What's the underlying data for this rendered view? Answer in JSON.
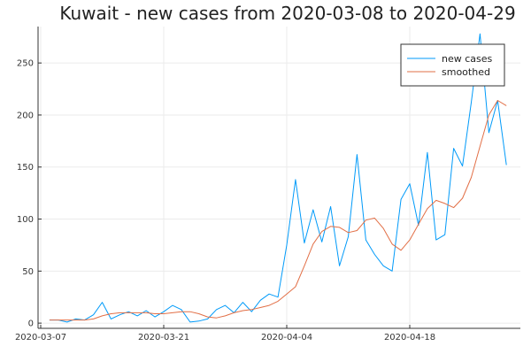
{
  "chart_data": {
    "type": "line",
    "title": "Kuwait - new cases from 2020-03-08 to 2020-04-29",
    "xlabel": "",
    "ylabel": "",
    "x_tick_labels": [
      "2020-03-07",
      "2020-03-21",
      "2020-04-04",
      "2020-04-18"
    ],
    "y_tick_labels": [
      "0",
      "50",
      "100",
      "150",
      "200",
      "250"
    ],
    "ylim": [
      -5,
      285
    ],
    "grid": true,
    "legend_position": "top-right",
    "x": [
      "2020-03-08",
      "2020-03-09",
      "2020-03-10",
      "2020-03-11",
      "2020-03-12",
      "2020-03-13",
      "2020-03-14",
      "2020-03-15",
      "2020-03-16",
      "2020-03-17",
      "2020-03-18",
      "2020-03-19",
      "2020-03-20",
      "2020-03-21",
      "2020-03-22",
      "2020-03-23",
      "2020-03-24",
      "2020-03-25",
      "2020-03-26",
      "2020-03-27",
      "2020-03-28",
      "2020-03-29",
      "2020-03-30",
      "2020-03-31",
      "2020-04-01",
      "2020-04-02",
      "2020-04-03",
      "2020-04-04",
      "2020-04-05",
      "2020-04-06",
      "2020-04-07",
      "2020-04-08",
      "2020-04-09",
      "2020-04-10",
      "2020-04-11",
      "2020-04-12",
      "2020-04-13",
      "2020-04-14",
      "2020-04-15",
      "2020-04-16",
      "2020-04-17",
      "2020-04-18",
      "2020-04-19",
      "2020-04-20",
      "2020-04-21",
      "2020-04-22",
      "2020-04-23",
      "2020-04-24",
      "2020-04-25",
      "2020-04-26",
      "2020-04-27",
      "2020-04-28",
      "2020-04-29"
    ],
    "series": [
      {
        "name": "new cases",
        "color": "#009af9",
        "values": [
          3,
          3,
          1,
          4,
          3,
          8,
          20,
          4,
          8,
          11,
          7,
          12,
          6,
          11,
          17,
          13,
          1,
          2,
          4,
          13,
          17,
          10,
          20,
          11,
          22,
          28,
          25,
          75,
          138,
          77,
          109,
          78,
          112,
          55,
          83,
          162,
          80,
          66,
          55,
          50,
          119,
          134,
          94,
          164,
          80,
          85,
          168,
          151,
          212,
          278,
          183,
          214,
          152
        ]
      },
      {
        "name": "smoothed",
        "color": "#e26f46",
        "values": [
          3,
          3,
          3,
          3,
          3,
          4,
          7,
          9,
          10,
          10,
          10,
          10,
          9,
          9,
          10,
          11,
          11,
          9,
          6,
          5,
          7,
          10,
          12,
          13,
          15,
          17,
          21,
          28,
          35,
          55,
          76,
          88,
          93,
          92,
          87,
          89,
          99,
          101,
          91,
          76,
          70,
          80,
          95,
          110,
          118,
          115,
          111,
          120,
          140,
          170,
          200,
          214,
          209
        ]
      }
    ]
  }
}
